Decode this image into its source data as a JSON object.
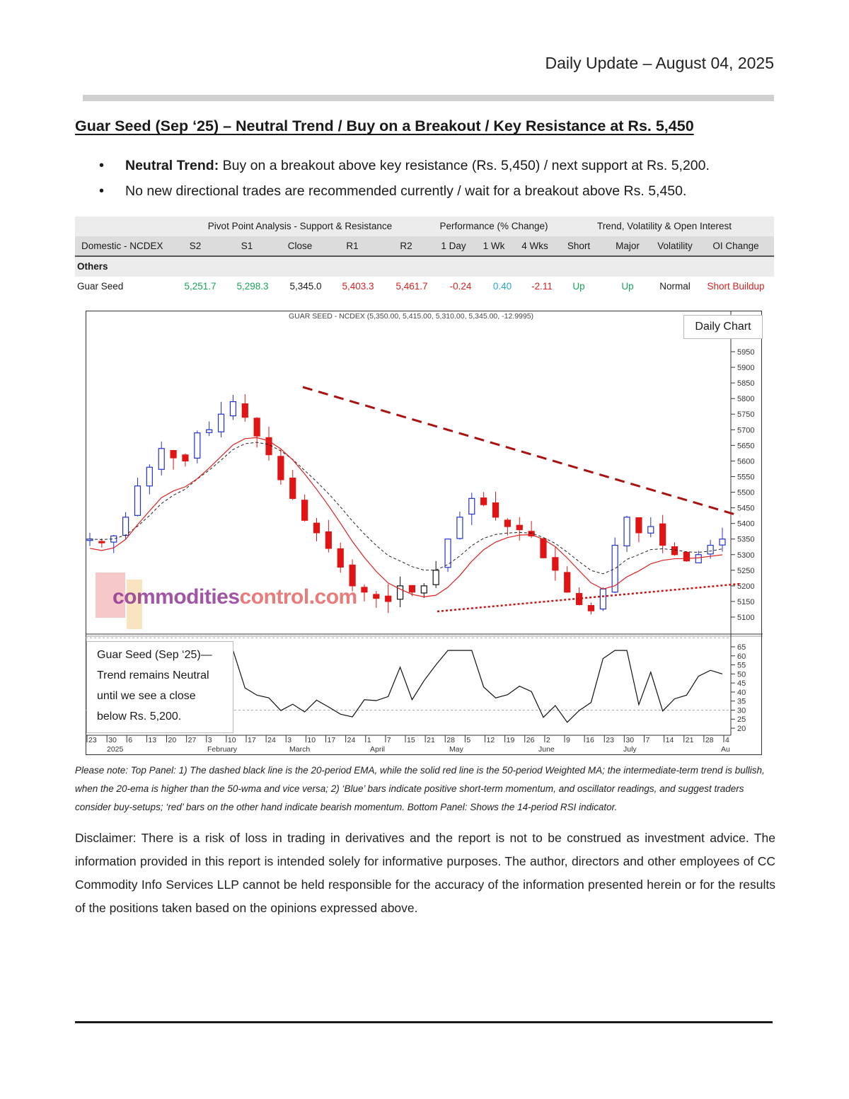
{
  "header": {
    "date": "Daily Update – August 04, 2025"
  },
  "headline": "Guar Seed (Sep    ‘25) – Neutral Trend / Buy on a Breakout / Key Resistance at Rs. 5,450",
  "bullets": [
    {
      "bold": "Neutral Trend:",
      "text": " Buy on a breakout above key resistance (Rs. 5,450) / next support at Rs. 5,200."
    },
    {
      "bold": "",
      "text": "No new directional trades are recommended currently / wait for a breakout above Rs. 5,450."
    }
  ],
  "table": {
    "groups": {
      "pivot": "Pivot Point Analysis - Support & Resistance",
      "performance": "Performance (% Change)",
      "trend": "Trend, Volatility & Open Interest"
    },
    "columns": [
      "Domestic - NCDEX",
      "S2",
      "S1",
      "Close",
      "R1",
      "R2",
      "1 Day",
      "1 Wk",
      "4 Wks",
      "Short",
      "Major",
      "Volatility",
      "OI Change"
    ],
    "section": "Others",
    "rows": [
      {
        "name": "Guar Seed",
        "s2": "5,251.7",
        "s1": "5,298.3",
        "close": "5,345.0",
        "r1": "5,403.3",
        "r2": "5,461.7",
        "d1": "-0.24",
        "w1": "0.40",
        "w4": "-2.11",
        "short": "Up",
        "major": "Up",
        "volatility": "Normal",
        "oi": "Short Buildup"
      }
    ]
  },
  "chart": {
    "title": "GUAR SEED - NCDEX (5,350.00, 5,415.00, 5,310.00, 5,345.00, -12.9995)",
    "label": "Daily Chart",
    "watermark": {
      "part1": "commodities",
      "part2": "control.com"
    },
    "rsi_note": [
      "Guar Seed (Sep    ‘25)—",
      "Trend remains Neutral",
      "until we see a close",
      "below Rs. 5,200."
    ]
  },
  "chart_data": {
    "type": "candlestick",
    "title": "GUAR SEED - NCDEX (5,350.00, 5,415.00, 5,310.00, 5,345.00, -12.9995)",
    "price_axis_ticks": [
      5950,
      5900,
      5850,
      5800,
      5750,
      5700,
      5650,
      5600,
      5550,
      5500,
      5450,
      5400,
      5350,
      5300,
      5250,
      5200,
      5150,
      5100
    ],
    "rsi_axis_ticks": [
      65,
      60,
      55,
      50,
      45,
      40,
      35,
      30,
      25,
      20
    ],
    "x_tick_labels": [
      "23",
      "30",
      "6",
      "13",
      "20",
      "27",
      "3",
      "10",
      "17",
      "24",
      "3",
      "10",
      "17",
      "24",
      "1",
      "7",
      "15",
      "21",
      "28",
      "5",
      "12",
      "19",
      "26",
      "2",
      "9",
      "16",
      "23",
      "30",
      "7",
      "14",
      "21",
      "28",
      "4"
    ],
    "month_labels": [
      "2025",
      "February",
      "March",
      "April",
      "May",
      "June",
      "July",
      "Au"
    ],
    "close_series": [
      5350,
      5340,
      5360,
      5420,
      5520,
      5580,
      5640,
      5610,
      5600,
      5690,
      5700,
      5750,
      5790,
      5740,
      5680,
      5620,
      5540,
      5480,
      5410,
      5370,
      5320,
      5260,
      5200,
      5180,
      5160,
      5150,
      5200,
      5180,
      5200,
      5250,
      5350,
      5420,
      5480,
      5460,
      5420,
      5390,
      5380,
      5360,
      5290,
      5250,
      5180,
      5140,
      5120,
      5190,
      5330,
      5420,
      5370,
      5390,
      5330,
      5300,
      5280,
      5300,
      5330,
      5350
    ],
    "ylim": [
      5100,
      5950
    ],
    "rsi_ylim": [
      20,
      65
    ]
  },
  "note": "Please note: Top Panel: 1) The dashed black line is the 20-period EMA, while the solid red line is the 50-period Weighted MA; the intermediate-term trend is bullish, when the 20-ema is higher than the 50-wma and vice versa; 2)    ‘Blue’    bars indicate positive short-term momentum, and oscillator readings, and suggest traders consider buy-setups;    ‘red’    bars on the other hand indicate bearish momentum. Bottom Panel: Shows the 14-period RSI indicator.",
  "disclaimer": "Disclaimer: There is a risk of loss in trading in derivatives and the report is not to be construed as investment advice. The information provided in this report is intended solely for informative purposes. The author, directors and other employees of CC Commodity Info Services LLP cannot be held responsible for the accuracy of the information presented herein or for the results of the positions taken based on the opinions expressed above."
}
